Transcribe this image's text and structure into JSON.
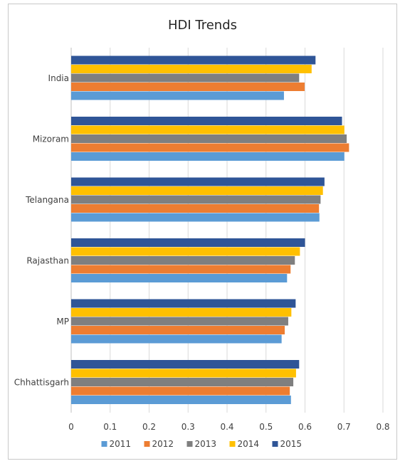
{
  "chart_data": {
    "type": "bar",
    "orientation": "horizontal",
    "title": "HDI Trends",
    "xlabel": "",
    "ylabel": "",
    "xlim": [
      0,
      0.8
    ],
    "x_ticks": [
      "0",
      "0.1",
      "0.2",
      "0.3",
      "0.4",
      "0.5",
      "0.6",
      "0.7",
      "0.8"
    ],
    "grid": true,
    "legend_position": "bottom",
    "categories": [
      "India",
      "Mizoram",
      "Telangana",
      "Rajasthan",
      "MP",
      "Chhattisgarh"
    ],
    "series": [
      {
        "name": "2011",
        "color": "#5b9bd5",
        "values": [
          0.546,
          0.701,
          0.637,
          0.554,
          0.54,
          0.564
        ]
      },
      {
        "name": "2012",
        "color": "#ed7d31",
        "values": [
          0.599,
          0.713,
          0.636,
          0.563,
          0.548,
          0.561
        ]
      },
      {
        "name": "2013",
        "color": "#7f7f7f",
        "values": [
          0.585,
          0.707,
          0.64,
          0.574,
          0.557,
          0.57
        ]
      },
      {
        "name": "2014",
        "color": "#ffc000",
        "values": [
          0.617,
          0.701,
          0.646,
          0.587,
          0.565,
          0.577
        ]
      },
      {
        "name": "2015",
        "color": "#2f5597",
        "values": [
          0.627,
          0.695,
          0.65,
          0.6,
          0.576,
          0.585
        ]
      }
    ]
  }
}
